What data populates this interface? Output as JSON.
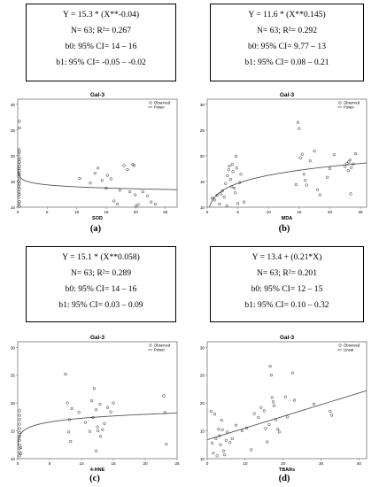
{
  "panels": [
    {
      "id": "a",
      "label": "(a)",
      "equation": {
        "model": "Y = 15.3 * (X**-0.04)",
        "n_r2": "N= 63; R²= 0.267",
        "b0": "b0: 95% CI= 14 – 16",
        "b1": "b1: 95% CI= -0.05 – -0.02"
      },
      "chart_data": {
        "type": "scatter",
        "title": "Gal-3",
        "xlabel": "SOD",
        "ylabel": "",
        "xlim": [
          0,
          27
        ],
        "ylim": [
          10,
          31
        ],
        "xticks": [
          "0",
          "5",
          "10",
          "15",
          "20",
          "25"
        ],
        "xtick_values": [
          0,
          5,
          10,
          15,
          20,
          25
        ],
        "yticks": [
          "10",
          "15",
          "20",
          "25",
          "30"
        ],
        "ytick_values": [
          10,
          15,
          20,
          25,
          30
        ],
        "legend": {
          "position": "top-right",
          "observed": "Observed",
          "fit": "Power"
        },
        "fit": {
          "kind": "power",
          "a": 15.3,
          "b": -0.04
        },
        "points": [
          [
            0.3,
            26.7
          ],
          [
            0.3,
            25.4
          ],
          [
            0.2,
            21.2
          ],
          [
            0.3,
            20.8
          ],
          [
            0.2,
            20.3
          ],
          [
            0.3,
            19.6
          ],
          [
            0.2,
            19.2
          ],
          [
            0.3,
            18.8
          ],
          [
            0.2,
            18.3
          ],
          [
            0.3,
            17.9
          ],
          [
            0.2,
            17.5
          ],
          [
            0.3,
            17.1
          ],
          [
            0.2,
            16.6
          ],
          [
            0.3,
            16.3
          ],
          [
            0.2,
            15.9
          ],
          [
            0.3,
            15.3
          ],
          [
            0.2,
            14.9
          ],
          [
            0.3,
            14.5
          ],
          [
            0.2,
            14.1
          ],
          [
            0.3,
            13.6
          ],
          [
            0.2,
            13.0
          ],
          [
            0.3,
            12.5
          ],
          [
            0.2,
            11.9
          ],
          [
            0.3,
            11.1
          ],
          [
            0.2,
            10.6
          ],
          [
            0.3,
            10.2
          ],
          [
            10.5,
            15.6
          ],
          [
            12.3,
            14.7
          ],
          [
            13.1,
            16.6
          ],
          [
            13.6,
            17.6
          ],
          [
            14.3,
            15.2
          ],
          [
            15.0,
            13.7
          ],
          [
            15.2,
            16.2
          ],
          [
            15.8,
            15.5
          ],
          [
            16.3,
            11.2
          ],
          [
            16.9,
            10.6
          ],
          [
            17.3,
            13.3
          ],
          [
            18.0,
            18.1
          ],
          [
            18.6,
            17.3
          ],
          [
            19.0,
            13.0
          ],
          [
            19.5,
            18.3
          ],
          [
            19.9,
            12.4
          ],
          [
            20.0,
            10.2
          ],
          [
            20.4,
            10.5
          ],
          [
            21.2,
            13.0
          ],
          [
            22.0,
            12.2
          ],
          [
            22.6,
            11.0
          ],
          [
            23.3,
            10.6
          ],
          [
            19.7,
            18.1
          ]
        ]
      }
    },
    {
      "id": "b",
      "label": "(b)",
      "equation": {
        "model": "Y = 11.6 * (X**0.145)",
        "n_r2": "N= 63; R²= 0.292",
        "b0": "b0: 95% CI= 9.77 – 13",
        "b1": "b1: 95% CI= 0.08 – 0.21"
      },
      "chart_data": {
        "type": "scatter",
        "title": "Gal-3",
        "xlabel": "MDA",
        "ylabel": "",
        "xlim": [
          0,
          26
        ],
        "ylim": [
          10,
          31
        ],
        "xticks": [
          "0",
          "5",
          "10",
          "15",
          "20",
          "25"
        ],
        "xtick_values": [
          0,
          5,
          10,
          15,
          20,
          25
        ],
        "yticks": [
          "10",
          "15",
          "20",
          "25",
          "30"
        ],
        "ytick_values": [
          10,
          15,
          20,
          25,
          30
        ],
        "legend": {
          "position": "top-right",
          "observed": "Observed",
          "fit": "Power"
        },
        "fit": {
          "kind": "power",
          "a": 11.6,
          "b": 0.145
        },
        "points": [
          [
            0.8,
            11.8
          ],
          [
            1.2,
            11.4
          ],
          [
            1.6,
            12.3
          ],
          [
            2.0,
            10.6
          ],
          [
            2.2,
            12.6
          ],
          [
            2.5,
            13.2
          ],
          [
            2.8,
            12.0
          ],
          [
            3.0,
            14.6
          ],
          [
            3.2,
            10.3
          ],
          [
            3.3,
            16.1
          ],
          [
            3.5,
            17.3
          ],
          [
            3.6,
            18.0
          ],
          [
            3.8,
            15.4
          ],
          [
            4.0,
            14.0
          ],
          [
            4.1,
            18.3
          ],
          [
            4.2,
            16.9
          ],
          [
            4.4,
            13.7
          ],
          [
            4.6,
            12.8
          ],
          [
            4.7,
            19.9
          ],
          [
            4.8,
            17.6
          ],
          [
            5.0,
            10.7
          ],
          [
            5.3,
            14.8
          ],
          [
            5.5,
            16.4
          ],
          [
            6.0,
            11.0
          ],
          [
            14.5,
            14.4
          ],
          [
            14.8,
            26.5
          ],
          [
            15.0,
            25.3
          ],
          [
            15.2,
            19.6
          ],
          [
            15.5,
            20.3
          ],
          [
            15.8,
            16.4
          ],
          [
            16.0,
            15.2
          ],
          [
            16.2,
            14.3
          ],
          [
            16.8,
            19.0
          ],
          [
            17.5,
            20.9
          ],
          [
            18.0,
            13.4
          ],
          [
            18.4,
            12.4
          ],
          [
            19.6,
            15.8
          ],
          [
            20.0,
            17.5
          ],
          [
            20.7,
            20.2
          ],
          [
            22.5,
            17.9
          ],
          [
            22.8,
            18.5
          ],
          [
            23.0,
            17.1
          ],
          [
            23.1,
            18.8
          ],
          [
            23.3,
            19.2
          ],
          [
            23.5,
            17.7
          ],
          [
            23.8,
            18.4
          ],
          [
            24.2,
            20.4
          ],
          [
            23.4,
            12.6
          ]
        ]
      }
    },
    {
      "id": "c",
      "label": "(c)",
      "equation": {
        "model": "Y = 15.1 * (X**0.058)",
        "n_r2": "N= 63; R²= 0.289",
        "b0": "b0: 95% CI= 14 – 16",
        "b1": "b1: 95% CI= 0.03 – 0.09"
      },
      "chart_data": {
        "type": "scatter",
        "title": "Gal-3",
        "xlabel": "4-HNE",
        "ylabel": "",
        "xlim": [
          0,
          25
        ],
        "ylim": [
          10,
          31
        ],
        "xticks": [
          "0",
          "5",
          "10",
          "15",
          "20",
          "25"
        ],
        "xtick_values": [
          0,
          5,
          10,
          15,
          20,
          25
        ],
        "yticks": [
          "10",
          "15",
          "20",
          "25",
          "30"
        ],
        "ytick_values": [
          10,
          15,
          20,
          25,
          30
        ],
        "legend": {
          "position": "top-right",
          "observed": "Observed",
          "fit": "Power"
        },
        "fit": {
          "kind": "power",
          "a": 15.1,
          "b": 0.058
        },
        "points": [
          [
            0.3,
            18.6
          ],
          [
            0.3,
            17.8
          ],
          [
            0.3,
            17.0
          ],
          [
            0.3,
            16.2
          ],
          [
            0.3,
            15.4
          ],
          [
            0.3,
            14.7
          ],
          [
            0.3,
            14.0
          ],
          [
            0.3,
            13.3
          ],
          [
            0.3,
            12.5
          ],
          [
            0.3,
            11.8
          ],
          [
            0.3,
            11.1
          ],
          [
            0.3,
            10.5
          ],
          [
            0.5,
            12.0
          ],
          [
            0.5,
            10.9
          ],
          [
            7.5,
            25.2
          ],
          [
            7.8,
            20.0
          ],
          [
            8.0,
            14.8
          ],
          [
            8.1,
            17.0
          ],
          [
            8.3,
            13.1
          ],
          [
            8.5,
            19.0
          ],
          [
            9.6,
            18.3
          ],
          [
            10.6,
            16.5
          ],
          [
            11.3,
            14.9
          ],
          [
            11.6,
            20.4
          ],
          [
            11.8,
            17.4
          ],
          [
            12.0,
            22.6
          ],
          [
            12.3,
            18.8
          ],
          [
            12.5,
            15.7
          ],
          [
            12.6,
            15.0
          ],
          [
            12.9,
            19.8
          ],
          [
            13.0,
            14.0
          ],
          [
            13.3,
            15.2
          ],
          [
            13.6,
            16.3
          ],
          [
            14.1,
            19.2
          ],
          [
            14.6,
            18.4
          ],
          [
            15.0,
            20.0
          ],
          [
            12.3,
            11.4
          ],
          [
            22.9,
            21.3
          ],
          [
            23.1,
            18.3
          ],
          [
            23.3,
            12.6
          ]
        ]
      }
    },
    {
      "id": "d",
      "label": "(d)",
      "equation": {
        "model": "Y = 13.4 + (0.21*X)",
        "n_r2": "N= 63; R²= 0.201",
        "b0": "b0: 95% CI= 12 – 15",
        "b1": "b1: 95% CI= 0.10 – 0.32"
      },
      "chart_data": {
        "type": "scatter",
        "title": "Gal-3",
        "xlabel": "TBARs",
        "ylabel": "",
        "xlim": [
          0,
          42
        ],
        "ylim": [
          10,
          31
        ],
        "xticks": [
          "0",
          "10",
          "20",
          "30",
          "40"
        ],
        "xtick_values": [
          0,
          10,
          20,
          30,
          40
        ],
        "yticks": [
          "10",
          "15",
          "20",
          "25",
          "30"
        ],
        "ytick_values": [
          10,
          15,
          20,
          25,
          30
        ],
        "legend": {
          "position": "top-right",
          "observed": "Observed",
          "fit": "Linear"
        },
        "fit": {
          "kind": "linear",
          "a": 13.4,
          "b": 0.21
        },
        "points": [
          [
            1.0,
            18.5
          ],
          [
            1.3,
            12.8
          ],
          [
            1.6,
            11.0
          ],
          [
            2.0,
            18.0
          ],
          [
            2.3,
            13.6
          ],
          [
            2.6,
            10.5
          ],
          [
            3.0,
            15.3
          ],
          [
            3.2,
            14.1
          ],
          [
            3.5,
            12.5
          ],
          [
            3.8,
            16.9
          ],
          [
            4.0,
            15.2
          ],
          [
            4.3,
            11.4
          ],
          [
            4.6,
            10.7
          ],
          [
            5.0,
            13.3
          ],
          [
            5.3,
            14.8
          ],
          [
            6.0,
            12.9
          ],
          [
            6.6,
            13.6
          ],
          [
            7.6,
            16.0
          ],
          [
            9.2,
            15.0
          ],
          [
            10.4,
            15.5
          ],
          [
            11.6,
            11.6
          ],
          [
            12.4,
            18.1
          ],
          [
            13.5,
            17.4
          ],
          [
            14.2,
            19.2
          ],
          [
            15.0,
            18.6
          ],
          [
            15.4,
            15.4
          ],
          [
            15.8,
            13.0
          ],
          [
            16.3,
            16.1
          ],
          [
            16.6,
            26.6
          ],
          [
            16.9,
            25.0
          ],
          [
            17.1,
            21.0
          ],
          [
            17.4,
            20.2
          ],
          [
            17.6,
            19.5
          ],
          [
            18.1,
            17.0
          ],
          [
            18.6,
            15.3
          ],
          [
            19.0,
            14.8
          ],
          [
            20.6,
            21.1
          ],
          [
            21.1,
            17.5
          ],
          [
            22.5,
            25.4
          ],
          [
            23.0,
            20.5
          ],
          [
            28.1,
            19.8
          ],
          [
            32.4,
            18.5
          ],
          [
            32.8,
            17.8
          ]
        ]
      }
    }
  ]
}
